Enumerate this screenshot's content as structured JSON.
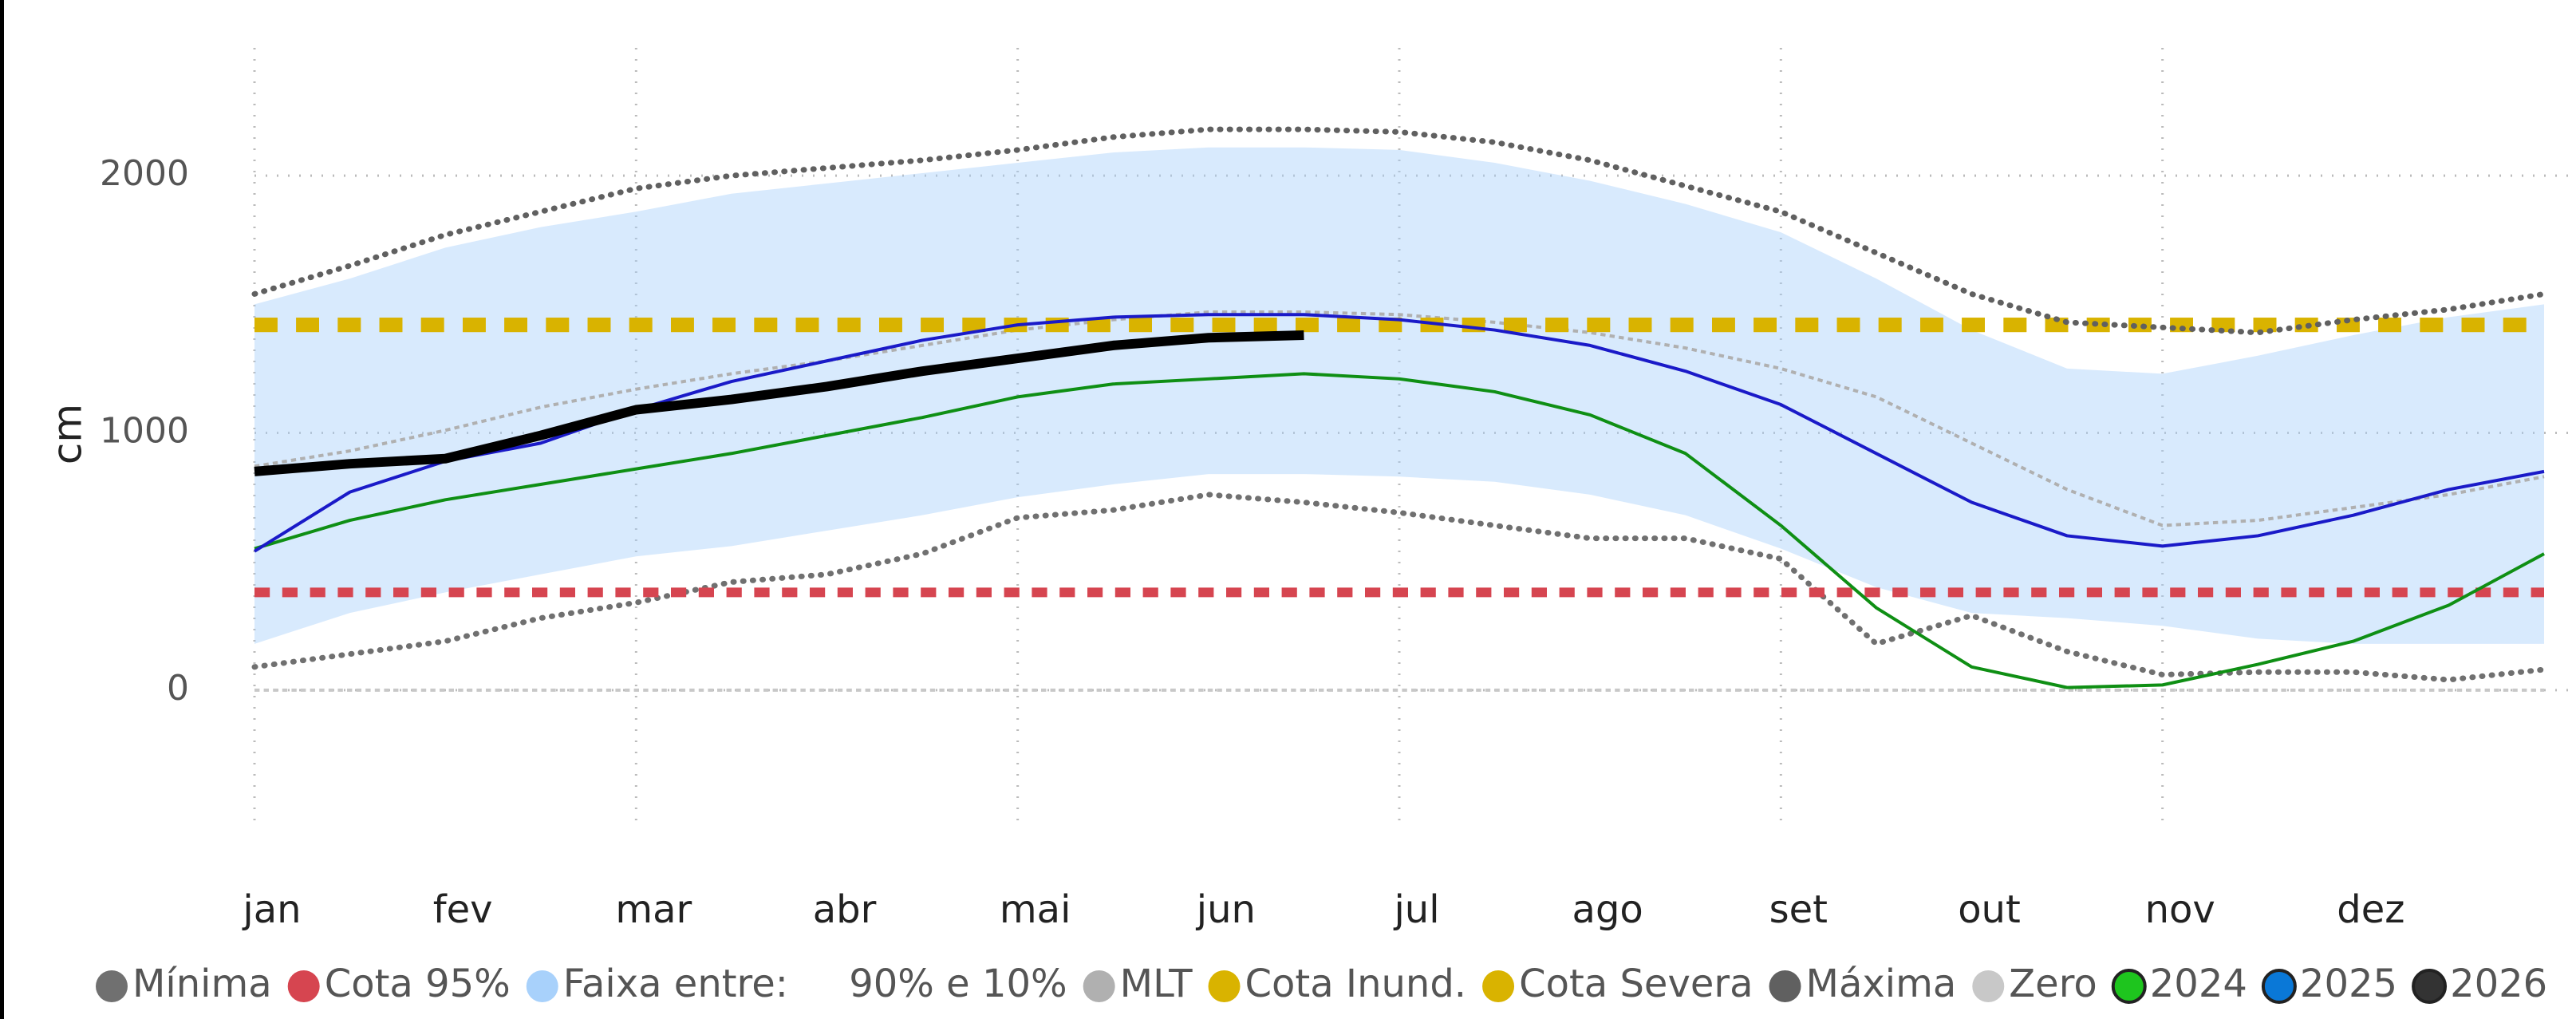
{
  "chart_data": {
    "type": "line",
    "ylabel": "cm",
    "categories": [
      "jan",
      null,
      "fev",
      null,
      "mar",
      null,
      "abr",
      null,
      "mai",
      null,
      "jun",
      null,
      "jul",
      null,
      "ago",
      null,
      "set",
      null,
      "out",
      null,
      "nov",
      null,
      "dez",
      null,
      null
    ],
    "ylim": [
      -500,
      2500
    ],
    "yticks": [
      0,
      1000,
      2000
    ],
    "grid": true,
    "series": [
      {
        "name": "Mínima",
        "color": "#707070",
        "style": "dotted",
        "width": 7,
        "values": [
          90,
          140,
          190,
          280,
          340,
          420,
          450,
          530,
          670,
          700,
          760,
          730,
          690,
          640,
          590,
          590,
          510,
          180,
          290,
          150,
          60,
          70,
          70,
          40,
          80
        ]
      },
      {
        "name": "Cota 95%",
        "color": "#d64550",
        "style": "dashed",
        "width": 12,
        "values": [
          380,
          380,
          380,
          380,
          380,
          380,
          380,
          380,
          380,
          380,
          380,
          380,
          380,
          380,
          380,
          380,
          380,
          380,
          380,
          380,
          380,
          380,
          380,
          380,
          380
        ]
      },
      {
        "name": "Faixa entre:     90% e 10%",
        "color": "#a8d1fb",
        "style": "area",
        "values": [
          180,
          300,
          380,
          450,
          520,
          560,
          620,
          680,
          750,
          800,
          840,
          840,
          830,
          810,
          760,
          680,
          550,
          400,
          300,
          280,
          250,
          200,
          180,
          180,
          180
        ],
        "values_high": [
          1500,
          1600,
          1720,
          1800,
          1860,
          1930,
          1970,
          2010,
          2050,
          2090,
          2110,
          2110,
          2100,
          2050,
          1980,
          1890,
          1780,
          1600,
          1400,
          1250,
          1230,
          1300,
          1380,
          1450,
          1500
        ]
      },
      {
        "name": "MLT",
        "color": "#b0b0b0",
        "style": "dashed",
        "width": 4,
        "values": [
          870,
          930,
          1010,
          1100,
          1170,
          1230,
          1280,
          1340,
          1400,
          1440,
          1470,
          1470,
          1460,
          1430,
          1390,
          1330,
          1250,
          1140,
          960,
          780,
          640,
          660,
          710,
          760,
          830
        ]
      },
      {
        "name": "Cota Inund.",
        "color": "#d9b300",
        "style": "dashed",
        "width": 18,
        "values": [
          1420,
          1420,
          1420,
          1420,
          1420,
          1420,
          1420,
          1420,
          1420,
          1420,
          1420,
          1420,
          1420,
          1420,
          1420,
          1420,
          1420,
          1420,
          1420,
          1420,
          1420,
          1420,
          1420,
          1420,
          1420
        ]
      },
      {
        "name": "Cota Severa",
        "color": "#d9b300",
        "style": "dashed",
        "width": 18,
        "values": [
          1420,
          1420,
          1420,
          1420,
          1420,
          1420,
          1420,
          1420,
          1420,
          1420,
          1420,
          1420,
          1420,
          1420,
          1420,
          1420,
          1420,
          1420,
          1420,
          1420,
          1420,
          1420,
          1420,
          1420,
          1420
        ]
      },
      {
        "name": "Máxima",
        "color": "#606060",
        "style": "dotted",
        "width": 7,
        "values": [
          1540,
          1650,
          1770,
          1860,
          1950,
          2000,
          2030,
          2060,
          2100,
          2150,
          2180,
          2180,
          2170,
          2130,
          2060,
          1960,
          1860,
          1700,
          1540,
          1430,
          1410,
          1390,
          1440,
          1480,
          1540
        ]
      },
      {
        "name": "Zero",
        "color": "#c8c8c8",
        "style": "dashed",
        "width": 4,
        "values": [
          0,
          0,
          0,
          0,
          0,
          0,
          0,
          0,
          0,
          0,
          0,
          0,
          0,
          0,
          0,
          0,
          0,
          0,
          0,
          0,
          0,
          0,
          0,
          0,
          0
        ]
      },
      {
        "name": "2024",
        "color": "#0f8f14",
        "marker_color": "#1ec51e",
        "marker_outline": "#222222",
        "style": "solid",
        "width": 4,
        "values": [
          550,
          660,
          740,
          800,
          860,
          920,
          990,
          1060,
          1140,
          1190,
          1210,
          1230,
          1210,
          1160,
          1070,
          920,
          640,
          320,
          90,
          10,
          20,
          100,
          190,
          330,
          530
        ]
      },
      {
        "name": "2025",
        "color": "#1a1ac8",
        "marker_color": "#0a78d7",
        "marker_outline": "#222222",
        "style": "solid",
        "width": 4,
        "values": [
          540,
          770,
          890,
          960,
          1090,
          1200,
          1280,
          1360,
          1420,
          1450,
          1460,
          1460,
          1440,
          1400,
          1340,
          1240,
          1110,
          920,
          730,
          600,
          560,
          600,
          680,
          780,
          850
        ]
      },
      {
        "name": "2026",
        "color": "#000000",
        "marker_color": "#333333",
        "marker_outline": "#222222",
        "style": "solid",
        "width": 12,
        "values": [
          850,
          880,
          900,
          990,
          1090,
          1130,
          1180,
          1240,
          1290,
          1340,
          1370,
          1380,
          null,
          null,
          null,
          null,
          null,
          null,
          null,
          null,
          null,
          null,
          null,
          null,
          null
        ]
      }
    ]
  }
}
